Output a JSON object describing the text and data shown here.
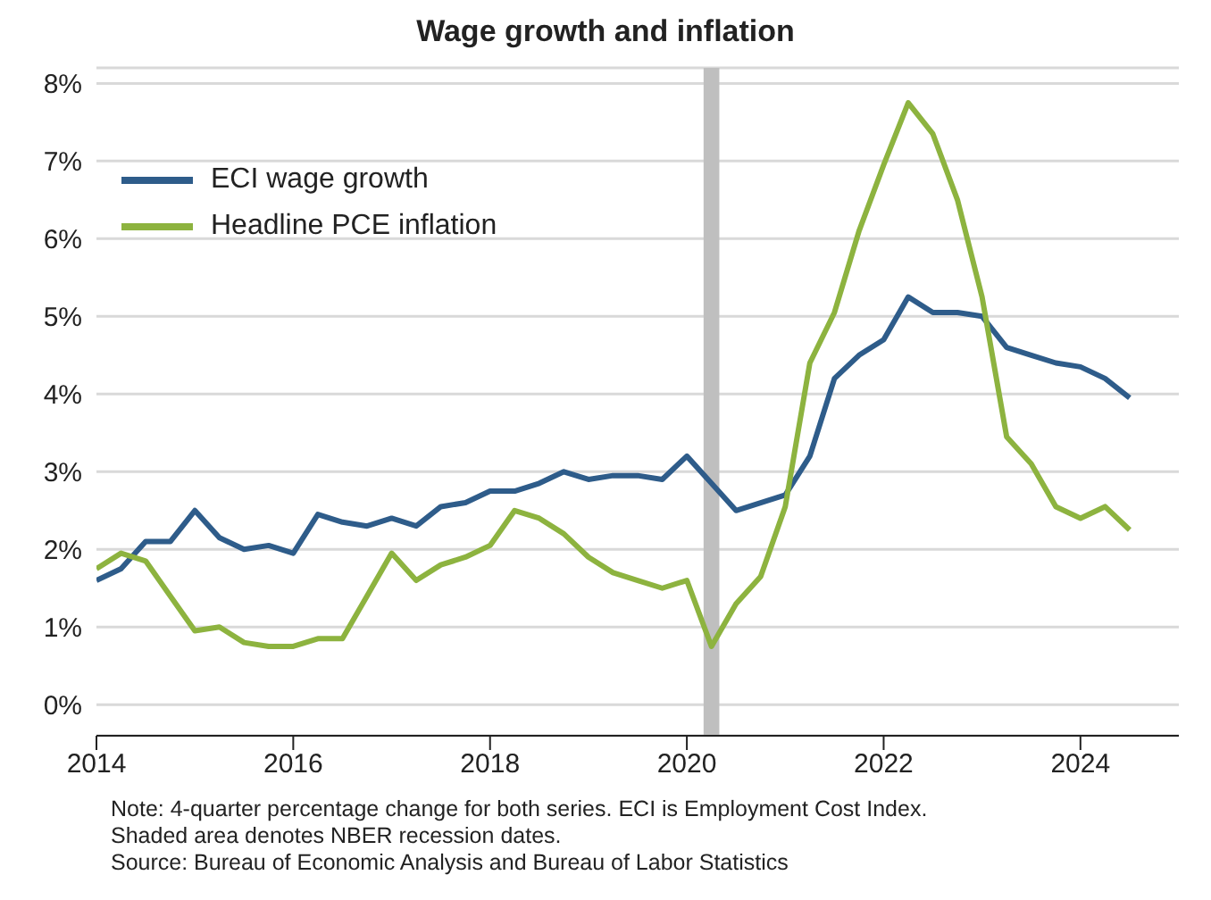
{
  "chart_data": {
    "type": "line",
    "title": "Wage growth and inflation",
    "x": [
      2014,
      2014.25,
      2014.5,
      2014.75,
      2015,
      2015.25,
      2015.5,
      2015.75,
      2016,
      2016.25,
      2016.5,
      2016.75,
      2017,
      2017.25,
      2017.5,
      2017.75,
      2018,
      2018.25,
      2018.5,
      2018.75,
      2019,
      2019.25,
      2019.5,
      2019.75,
      2020,
      2020.25,
      2020.5,
      2020.75,
      2021,
      2021.25,
      2021.5,
      2021.75,
      2022,
      2022.25,
      2022.5,
      2022.75,
      2023,
      2023.25,
      2023.5,
      2023.75,
      2024,
      2024.25,
      2024.5
    ],
    "series": [
      {
        "name": "ECI wage growth",
        "color": "#2e5c8a",
        "values": [
          1.6,
          1.75,
          2.1,
          2.1,
          2.5,
          2.15,
          2.0,
          2.05,
          1.95,
          2.45,
          2.35,
          2.3,
          2.4,
          2.3,
          2.55,
          2.6,
          2.75,
          2.75,
          2.85,
          3.0,
          2.9,
          2.95,
          2.95,
          2.9,
          3.2,
          2.85,
          2.5,
          2.6,
          2.7,
          3.2,
          4.2,
          4.5,
          4.7,
          5.25,
          5.05,
          5.05,
          5.0,
          4.6,
          4.5,
          4.4,
          4.35,
          4.2,
          3.95
        ]
      },
      {
        "name": "Headline PCE inflation",
        "color": "#8db33f",
        "values": [
          1.75,
          1.95,
          1.85,
          1.4,
          0.95,
          1.0,
          0.8,
          0.75,
          0.75,
          0.85,
          0.85,
          1.4,
          1.95,
          1.6,
          1.8,
          1.9,
          2.05,
          2.5,
          2.4,
          2.2,
          1.9,
          1.7,
          1.6,
          1.5,
          1.6,
          0.75,
          1.3,
          1.65,
          2.55,
          4.4,
          5.05,
          6.1,
          6.95,
          7.75,
          7.35,
          6.5,
          5.25,
          3.45,
          3.1,
          2.55,
          2.4,
          2.55,
          2.25
        ]
      }
    ],
    "xlim": [
      2014,
      2025
    ],
    "xticks": [
      2014,
      2016,
      2018,
      2020,
      2022,
      2024
    ],
    "ylim": [
      -0.4,
      8.2
    ],
    "yticks": [
      {
        "value": 0,
        "label": "0%"
      },
      {
        "value": 1,
        "label": "1%"
      },
      {
        "value": 2,
        "label": "2%"
      },
      {
        "value": 3,
        "label": "3%"
      },
      {
        "value": 4,
        "label": "4%"
      },
      {
        "value": 5,
        "label": "5%"
      },
      {
        "value": 6,
        "label": "6%"
      },
      {
        "value": 7,
        "label": "7%"
      },
      {
        "value": 8,
        "label": "8%"
      }
    ],
    "bands": [
      {
        "axis": "x",
        "from": 2020.17,
        "to": 2020.33,
        "color": "#bfbfbf"
      }
    ],
    "grid": "y",
    "legend": "top left",
    "line_style": "solid",
    "marker": "none",
    "annotations": [
      "Note: 4-quarter percentage change for both series. ECI is Employment Cost Index.",
      "Shaded area denotes NBER recession dates.",
      "Source: Bureau of Economic Analysis and Bureau of Labor Statistics"
    ]
  }
}
